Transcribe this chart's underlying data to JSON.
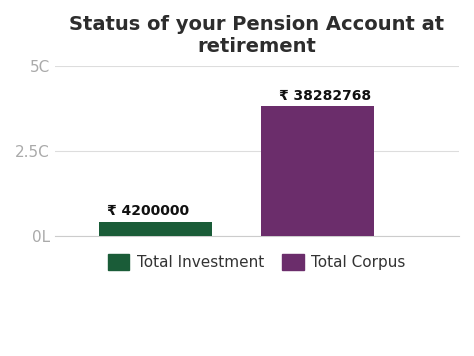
{
  "title": "Status of your Pension Account at\nretirement",
  "categories": [
    "Total Investment",
    "Total Corpus"
  ],
  "values": [
    4200000,
    38282768
  ],
  "bar_colors": [
    "#1a5c38",
    "#6b2d6b"
  ],
  "bar_labels": [
    "₹ 4200000",
    "₹ 38282768"
  ],
  "yticks": [
    0,
    25000000,
    50000000
  ],
  "ytick_labels": [
    "0L",
    "2.5C",
    "5C"
  ],
  "ylim": [
    0,
    50000000
  ],
  "background_color": "#ffffff",
  "title_fontsize": 14,
  "label_fontsize": 10,
  "tick_fontsize": 11,
  "legend_fontsize": 11,
  "title_color": "#2d2d2d",
  "tick_color": "#aaaaaa",
  "label_color": "#111111"
}
